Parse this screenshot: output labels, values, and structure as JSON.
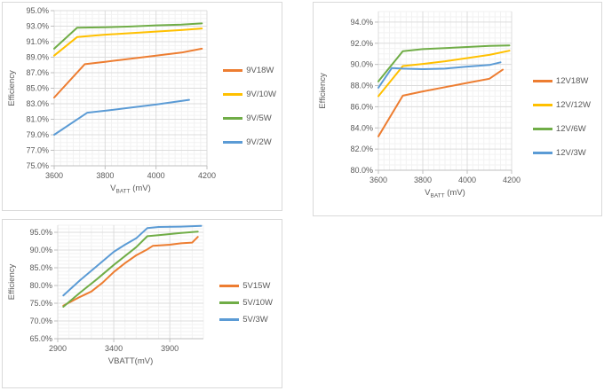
{
  "colors": {
    "orange": "#ED7D31",
    "gold": "#FFC000",
    "green": "#70AD47",
    "blue": "#5B9BD5",
    "axis_text": "#595959",
    "gridline_major": "#DCDCDC",
    "gridline_minor": "#F2F2F2",
    "axis_line": "#BFBFBF",
    "panel_border": "#D9D9D9"
  },
  "chart_data": [
    {
      "id": "9v",
      "type": "line",
      "title": "",
      "ylabel": "Efficiency",
      "xlabel_pre": "V",
      "xlabel_sub": "BATT",
      "xlabel_post": " (mV)",
      "xlim": [
        3600,
        4200
      ],
      "ylim": [
        75,
        95
      ],
      "xticks": [
        3600,
        3800,
        4000,
        4200
      ],
      "yticks": [
        75,
        77,
        79,
        81,
        83,
        85,
        87,
        89,
        91,
        93,
        95
      ],
      "ytick_format": "percent1",
      "minor_x": 25,
      "minor_y": 0.5,
      "grid": true,
      "legend_position": "right",
      "series": [
        {
          "name": "9V18W",
          "color": "#ED7D31",
          "x": [
            3600,
            3720,
            3800,
            3900,
            4000,
            4100,
            4180
          ],
          "y": [
            83.8,
            88.1,
            88.4,
            88.8,
            89.2,
            89.6,
            90.1
          ]
        },
        {
          "name": "9V/10W",
          "color": "#FFC000",
          "x": [
            3600,
            3690,
            3800,
            3900,
            4000,
            4100,
            4180
          ],
          "y": [
            89.2,
            91.6,
            91.9,
            92.1,
            92.3,
            92.5,
            92.7
          ]
        },
        {
          "name": "9V/5W",
          "color": "#70AD47",
          "x": [
            3600,
            3690,
            3800,
            3900,
            4000,
            4100,
            4180
          ],
          "y": [
            90.1,
            92.8,
            92.85,
            92.95,
            93.1,
            93.2,
            93.35
          ]
        },
        {
          "name": "9V/2W",
          "color": "#5B9BD5",
          "x": [
            3600,
            3730,
            3800,
            3900,
            4000,
            4130
          ],
          "y": [
            79.0,
            81.85,
            82.1,
            82.5,
            82.9,
            83.5
          ]
        }
      ]
    },
    {
      "id": "12v",
      "type": "line",
      "title": "",
      "ylabel": "Efficiency",
      "xlabel_pre": "V",
      "xlabel_sub": "BATT",
      "xlabel_post": " (mV)",
      "xlim": [
        3600,
        4200
      ],
      "ylim": [
        80,
        95
      ],
      "xticks": [
        3600,
        3800,
        4000,
        4200
      ],
      "yticks": [
        80,
        82,
        84,
        86,
        88,
        90,
        92,
        94
      ],
      "ytick_format": "percent1",
      "minor_x": 25,
      "minor_y": 0.5,
      "grid": true,
      "legend_position": "right",
      "series": [
        {
          "name": "12V18W",
          "color": "#ED7D31",
          "x": [
            3600,
            3710,
            3800,
            3900,
            4000,
            4100,
            4160
          ],
          "y": [
            83.2,
            87.05,
            87.45,
            87.85,
            88.25,
            88.65,
            89.5
          ]
        },
        {
          "name": "12V/12W",
          "color": "#FFC000",
          "x": [
            3600,
            3710,
            3800,
            3900,
            4000,
            4100,
            4190
          ],
          "y": [
            87.0,
            89.85,
            90.05,
            90.3,
            90.6,
            90.9,
            91.3
          ]
        },
        {
          "name": "12V/6W",
          "color": "#70AD47",
          "x": [
            3600,
            3710,
            3800,
            3900,
            4000,
            4100,
            4190
          ],
          "y": [
            88.4,
            91.25,
            91.45,
            91.55,
            91.65,
            91.75,
            91.8
          ]
        },
        {
          "name": "12V/3W",
          "color": "#5B9BD5",
          "x": [
            3600,
            3660,
            3710,
            3800,
            3900,
            4000,
            4100,
            4150
          ],
          "y": [
            87.8,
            89.65,
            89.6,
            89.55,
            89.6,
            89.8,
            89.95,
            90.2
          ]
        }
      ]
    },
    {
      "id": "5v",
      "type": "line",
      "title": "",
      "ylabel": "Efficiency",
      "xlabel_pre": "VBATT(mV)",
      "xlabel_sub": "",
      "xlabel_post": "",
      "xlim": [
        2900,
        4200
      ],
      "ylim": [
        65,
        97
      ],
      "xticks": [
        2900,
        3400,
        3900
      ],
      "yticks": [
        65,
        70,
        75,
        80,
        85,
        90,
        95
      ],
      "ytick_format": "percent1",
      "minor_x": 100,
      "minor_y": 1,
      "grid": true,
      "legend_position": "right",
      "series": [
        {
          "name": "5V15W",
          "color": "#ED7D31",
          "x": [
            2950,
            3100,
            3200,
            3300,
            3400,
            3500,
            3600,
            3700,
            3750,
            3900,
            4000,
            4100,
            4150
          ],
          "y": [
            74.3,
            76.8,
            78.3,
            80.8,
            83.8,
            86.3,
            88.5,
            90.2,
            91.2,
            91.5,
            91.9,
            92.1,
            93.7
          ]
        },
        {
          "name": "5V/10W",
          "color": "#70AD47",
          "x": [
            2950,
            3100,
            3250,
            3400,
            3500,
            3600,
            3700,
            3800,
            4000,
            4150
          ],
          "y": [
            74.0,
            78.0,
            81.8,
            85.8,
            88.3,
            90.8,
            93.9,
            94.2,
            94.8,
            95.2
          ]
        },
        {
          "name": "5V/3W",
          "color": "#5B9BD5",
          "x": [
            2950,
            3100,
            3250,
            3400,
            3500,
            3600,
            3700,
            3800,
            4000,
            4180
          ],
          "y": [
            77.2,
            81.5,
            85.5,
            89.5,
            91.5,
            93.3,
            96.2,
            96.5,
            96.6,
            96.8
          ]
        }
      ]
    }
  ]
}
